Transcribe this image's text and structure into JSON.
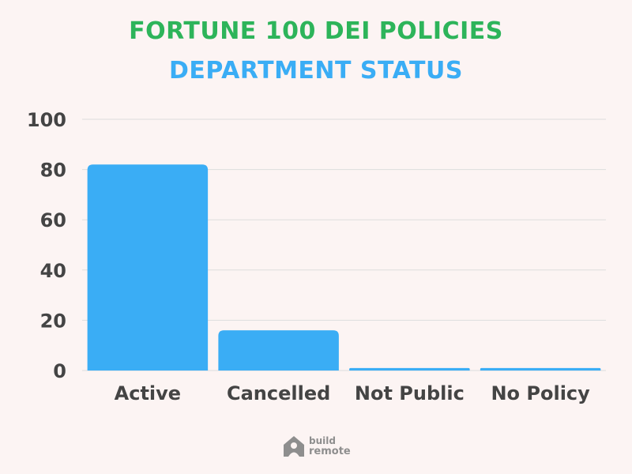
{
  "colors": {
    "background": "#FCF4F3",
    "title_primary": "#2DB45A",
    "title_secondary": "#3AADF5",
    "bar": "#3AADF5",
    "grid": "#DDDDDD",
    "text": "#444444",
    "logo": "#8E8E8E"
  },
  "chart_data": {
    "type": "bar",
    "title": "FORTUNE 100 DEI POLICIES",
    "subtitle": "DEPARTMENT STATUS",
    "categories": [
      "Active",
      "Cancelled",
      "Not Public",
      "No Policy"
    ],
    "values": [
      82,
      16,
      1,
      1
    ],
    "yticks": [
      0,
      20,
      40,
      60,
      80,
      100
    ],
    "ylim": [
      0,
      100
    ],
    "xlabel": "",
    "ylabel": "",
    "grid": true,
    "legend": "none"
  },
  "footer": {
    "logo_icon": "house-person-icon",
    "logo_line1": "build",
    "logo_line2": "remote"
  }
}
